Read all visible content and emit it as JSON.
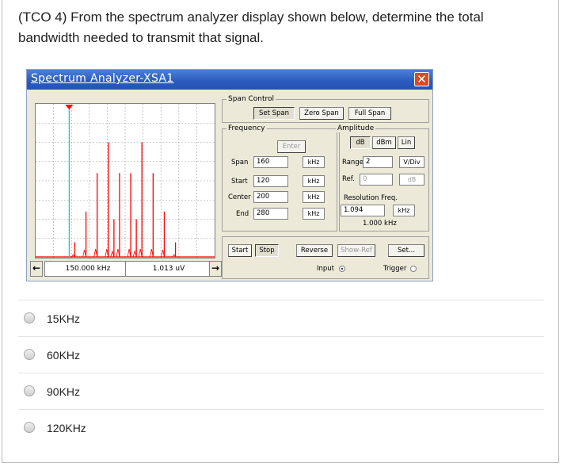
{
  "question": {
    "line1": "(TCO 4) From the spectrum analyzer display shown below, determine the total",
    "line2": "bandwidth needed to transmit that signal."
  },
  "analyzer": {
    "title": "Spectrum Analyzer-XSA1",
    "close_glyph": "✕",
    "readout_freq": "150.000 kHz",
    "readout_amp": "1.013 uV",
    "left_arrow": "←",
    "right_arrow": "→",
    "span_control": {
      "label": "Span Control",
      "set_span": "Set Span",
      "zero_span": "Zero Span",
      "full_span": "Full Span"
    },
    "frequency": {
      "label": "Frequency",
      "enter": "Enter",
      "span_label": "Span",
      "span_value": "160",
      "span_unit": "kHz",
      "start_label": "Start",
      "start_value": "120",
      "start_unit": "kHz",
      "center_label": "Center",
      "center_value": "200",
      "center_unit": "kHz",
      "end_label": "End",
      "end_value": "280",
      "end_unit": "kHz"
    },
    "amplitude": {
      "label": "Amplitude",
      "db": "dB",
      "dbm": "dBm",
      "lin": "Lin",
      "range_label": "Range",
      "range_value": "2",
      "range_unit": "V/Div",
      "ref_label": "Ref.",
      "ref_value": "0",
      "ref_unit": "dB"
    },
    "resolution": {
      "label": "Resolution Freq.",
      "value": "1.094",
      "unit": "kHz",
      "default": "1.000 kHz"
    },
    "bottom": {
      "start": "Start",
      "stop": "Stop",
      "reverse": "Reverse",
      "show_ref": "Show-Ref",
      "set": "Set...",
      "input": "Input",
      "trigger": "Trigger"
    },
    "colors": {
      "spectrum_line": "#ff0000",
      "cursor": "#00c8d8",
      "grid": "#a0a0a0"
    },
    "chart_data": {
      "type": "bar",
      "x": [
        155,
        165,
        175,
        185,
        190,
        195,
        205,
        210,
        215,
        225,
        235,
        245
      ],
      "values": [
        0.2,
        0.6,
        1.1,
        1.5,
        0.5,
        1.1,
        1.1,
        0.5,
        1.5,
        1.1,
        0.6,
        0.2
      ],
      "xlim": [
        120,
        280
      ],
      "ylim": [
        0,
        2
      ],
      "cursor_x": 150
    }
  },
  "options": [
    {
      "label": "15KHz"
    },
    {
      "label": "60KHz"
    },
    {
      "label": "90KHz"
    },
    {
      "label": "120KHz"
    }
  ]
}
